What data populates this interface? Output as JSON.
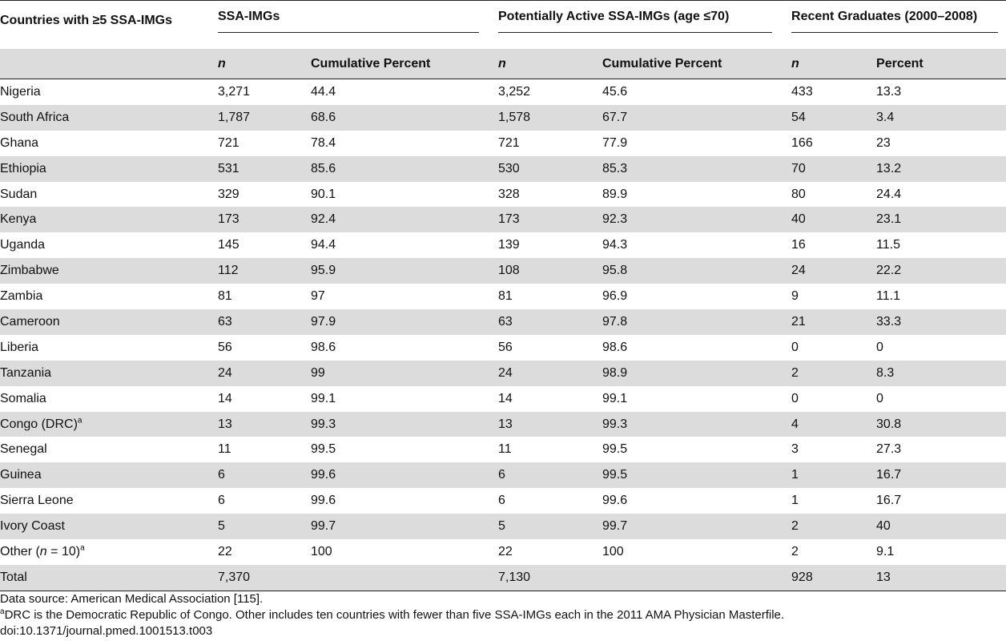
{
  "table": {
    "header_groups": {
      "countries": "Countries with ≥5 SSA-IMGs",
      "ssa_imgs": "SSA-IMGs",
      "active": "Potentially Active SSA-IMGs (age ≤70)",
      "recent": "Recent Graduates (2000–2008)"
    },
    "subheaders": {
      "n1": "n",
      "cum1": "Cumulative Percent",
      "n2": "n",
      "cum2": "Cumulative Percent",
      "n3": "n",
      "pct3": "Percent"
    },
    "rows": [
      {
        "country": "Nigeria",
        "sup": "",
        "n1": "3,271",
        "cum1": "44.4",
        "n2": "3,252",
        "cum2": "45.6",
        "n3": "433",
        "pct3": "13.3"
      },
      {
        "country": "South Africa",
        "sup": "",
        "n1": "1,787",
        "cum1": "68.6",
        "n2": "1,578",
        "cum2": "67.7",
        "n3": "54",
        "pct3": "3.4"
      },
      {
        "country": "Ghana",
        "sup": "",
        "n1": "721",
        "cum1": "78.4",
        "n2": "721",
        "cum2": "77.9",
        "n3": "166",
        "pct3": "23"
      },
      {
        "country": "Ethiopia",
        "sup": "",
        "n1": "531",
        "cum1": "85.6",
        "n2": "530",
        "cum2": "85.3",
        "n3": "70",
        "pct3": "13.2"
      },
      {
        "country": "Sudan",
        "sup": "",
        "n1": "329",
        "cum1": "90.1",
        "n2": "328",
        "cum2": "89.9",
        "n3": "80",
        "pct3": "24.4"
      },
      {
        "country": "Kenya",
        "sup": "",
        "n1": "173",
        "cum1": "92.4",
        "n2": "173",
        "cum2": "92.3",
        "n3": "40",
        "pct3": "23.1"
      },
      {
        "country": "Uganda",
        "sup": "",
        "n1": "145",
        "cum1": "94.4",
        "n2": "139",
        "cum2": "94.3",
        "n3": "16",
        "pct3": "11.5"
      },
      {
        "country": "Zimbabwe",
        "sup": "",
        "n1": "112",
        "cum1": "95.9",
        "n2": "108",
        "cum2": "95.8",
        "n3": "24",
        "pct3": "22.2"
      },
      {
        "country": "Zambia",
        "sup": "",
        "n1": "81",
        "cum1": "97",
        "n2": "81",
        "cum2": "96.9",
        "n3": "9",
        "pct3": "11.1"
      },
      {
        "country": "Cameroon",
        "sup": "",
        "n1": "63",
        "cum1": "97.9",
        "n2": "63",
        "cum2": "97.8",
        "n3": "21",
        "pct3": "33.3"
      },
      {
        "country": "Liberia",
        "sup": "",
        "n1": "56",
        "cum1": "98.6",
        "n2": "56",
        "cum2": "98.6",
        "n3": "0",
        "pct3": "0"
      },
      {
        "country": "Tanzania",
        "sup": "",
        "n1": "24",
        "cum1": "99",
        "n2": "24",
        "cum2": "98.9",
        "n3": "2",
        "pct3": "8.3"
      },
      {
        "country": "Somalia",
        "sup": "",
        "n1": "14",
        "cum1": "99.1",
        "n2": "14",
        "cum2": "99.1",
        "n3": "0",
        "pct3": "0"
      },
      {
        "country": "Congo (DRC)",
        "sup": "a",
        "n1": "13",
        "cum1": "99.3",
        "n2": "13",
        "cum2": "99.3",
        "n3": "4",
        "pct3": "30.8"
      },
      {
        "country": "Senegal",
        "sup": "",
        "n1": "11",
        "cum1": "99.5",
        "n2": "11",
        "cum2": "99.5",
        "n3": "3",
        "pct3": "27.3"
      },
      {
        "country": "Guinea",
        "sup": "",
        "n1": "6",
        "cum1": "99.6",
        "n2": "6",
        "cum2": "99.5",
        "n3": "1",
        "pct3": "16.7"
      },
      {
        "country": "Sierra Leone",
        "sup": "",
        "n1": "6",
        "cum1": "99.6",
        "n2": "6",
        "cum2": "99.6",
        "n3": "1",
        "pct3": "16.7"
      },
      {
        "country": "Ivory Coast",
        "sup": "",
        "n1": "5",
        "cum1": "99.7",
        "n2": "5",
        "cum2": "99.7",
        "n3": "2",
        "pct3": "40"
      },
      {
        "country": "Other (",
        "country_n": "n",
        "country_tail": " = 10)",
        "sup": "a",
        "n1": "22",
        "cum1": "100",
        "n2": "22",
        "cum2": "100",
        "n3": "2",
        "pct3": "9.1"
      }
    ],
    "total": {
      "country": "Total",
      "n1": "7,370",
      "cum1": "",
      "n2": "7,130",
      "cum2": "",
      "n3": "928",
      "pct3": "13"
    }
  },
  "footer": {
    "source": "Data source: American Medical Association [115].",
    "note_sup": "a",
    "note": "DRC is the Democratic Republic of Congo. Other includes ten countries with fewer than five SSA-IMGs each in the 2011 AMA Physician Masterfile.",
    "doi": "doi:10.1371/journal.pmed.1001513.t003"
  }
}
